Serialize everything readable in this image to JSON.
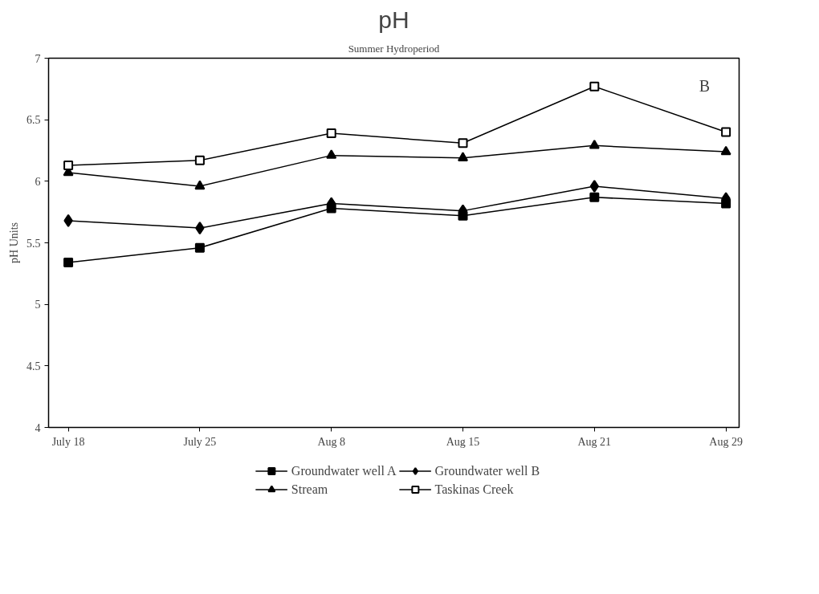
{
  "chart_data": {
    "type": "line",
    "title": "pH",
    "subtitle": "Summer Hydroperiod",
    "ylabel": "pH Units",
    "categories": [
      "July 18",
      "July 25",
      "Aug 8",
      "Aug 15",
      "Aug 21",
      "Aug 29"
    ],
    "ylim": [
      4,
      7
    ],
    "yticks": [
      4,
      4.5,
      5,
      5.5,
      6,
      6.5,
      7
    ],
    "grid": false,
    "legend": "bottom",
    "line_style": "solid",
    "annotations": [
      "B"
    ],
    "series": [
      {
        "name": "Groundwater well A",
        "color": "#000000",
        "marker": "square",
        "values": [
          5.34,
          5.46,
          5.78,
          5.72,
          5.87,
          5.82
        ]
      },
      {
        "name": "Groundwater well B",
        "color": "#000000",
        "marker": "diamond",
        "values": [
          5.68,
          5.62,
          5.82,
          5.76,
          5.96,
          5.86
        ]
      },
      {
        "name": "Stream",
        "color": "#000000",
        "marker": "triangle",
        "values": [
          6.07,
          5.96,
          6.21,
          6.19,
          6.29,
          6.24
        ]
      },
      {
        "name": "Taskinas Creek",
        "color": "#000000",
        "marker": "square_open",
        "values": [
          6.13,
          6.17,
          6.39,
          6.31,
          6.77,
          6.4
        ]
      }
    ]
  }
}
